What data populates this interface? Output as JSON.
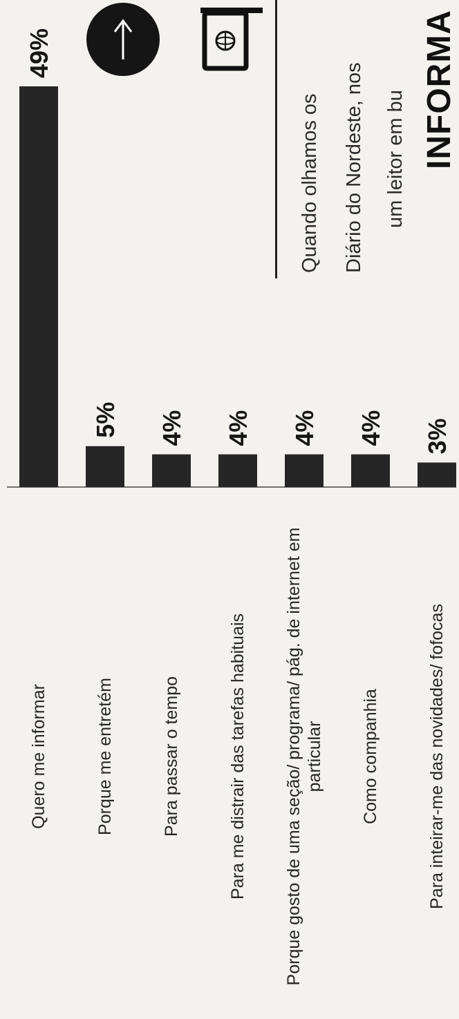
{
  "chart_data": {
    "type": "bar",
    "orientation": "horizontal",
    "categories": [
      "Quero me informar",
      "Porque me entretém",
      "Para passar o tempo",
      "Para me distrair das tarefas habituais",
      "Porque gosto de uma seção/ programa/ pág. de internet em particular",
      "Como companhia",
      "Para inteirar-me das novidades/ fofocas"
    ],
    "values": [
      49,
      5,
      4,
      4,
      4,
      4,
      3
    ],
    "value_labels": [
      "49%",
      "5%",
      "4%",
      "4%",
      "4%",
      "4%",
      "3%"
    ],
    "xlim": [
      0,
      49
    ],
    "grid": false,
    "bar_color": "#262626"
  },
  "side": {
    "lines": [
      "Quando olhamos os",
      "Diário do Nordeste, nos",
      "um leitor em bu"
    ],
    "heading": "INFORMA"
  },
  "icons": {
    "arrow": "arrow-right-icon",
    "monitor": "globe-monitor-icon"
  }
}
